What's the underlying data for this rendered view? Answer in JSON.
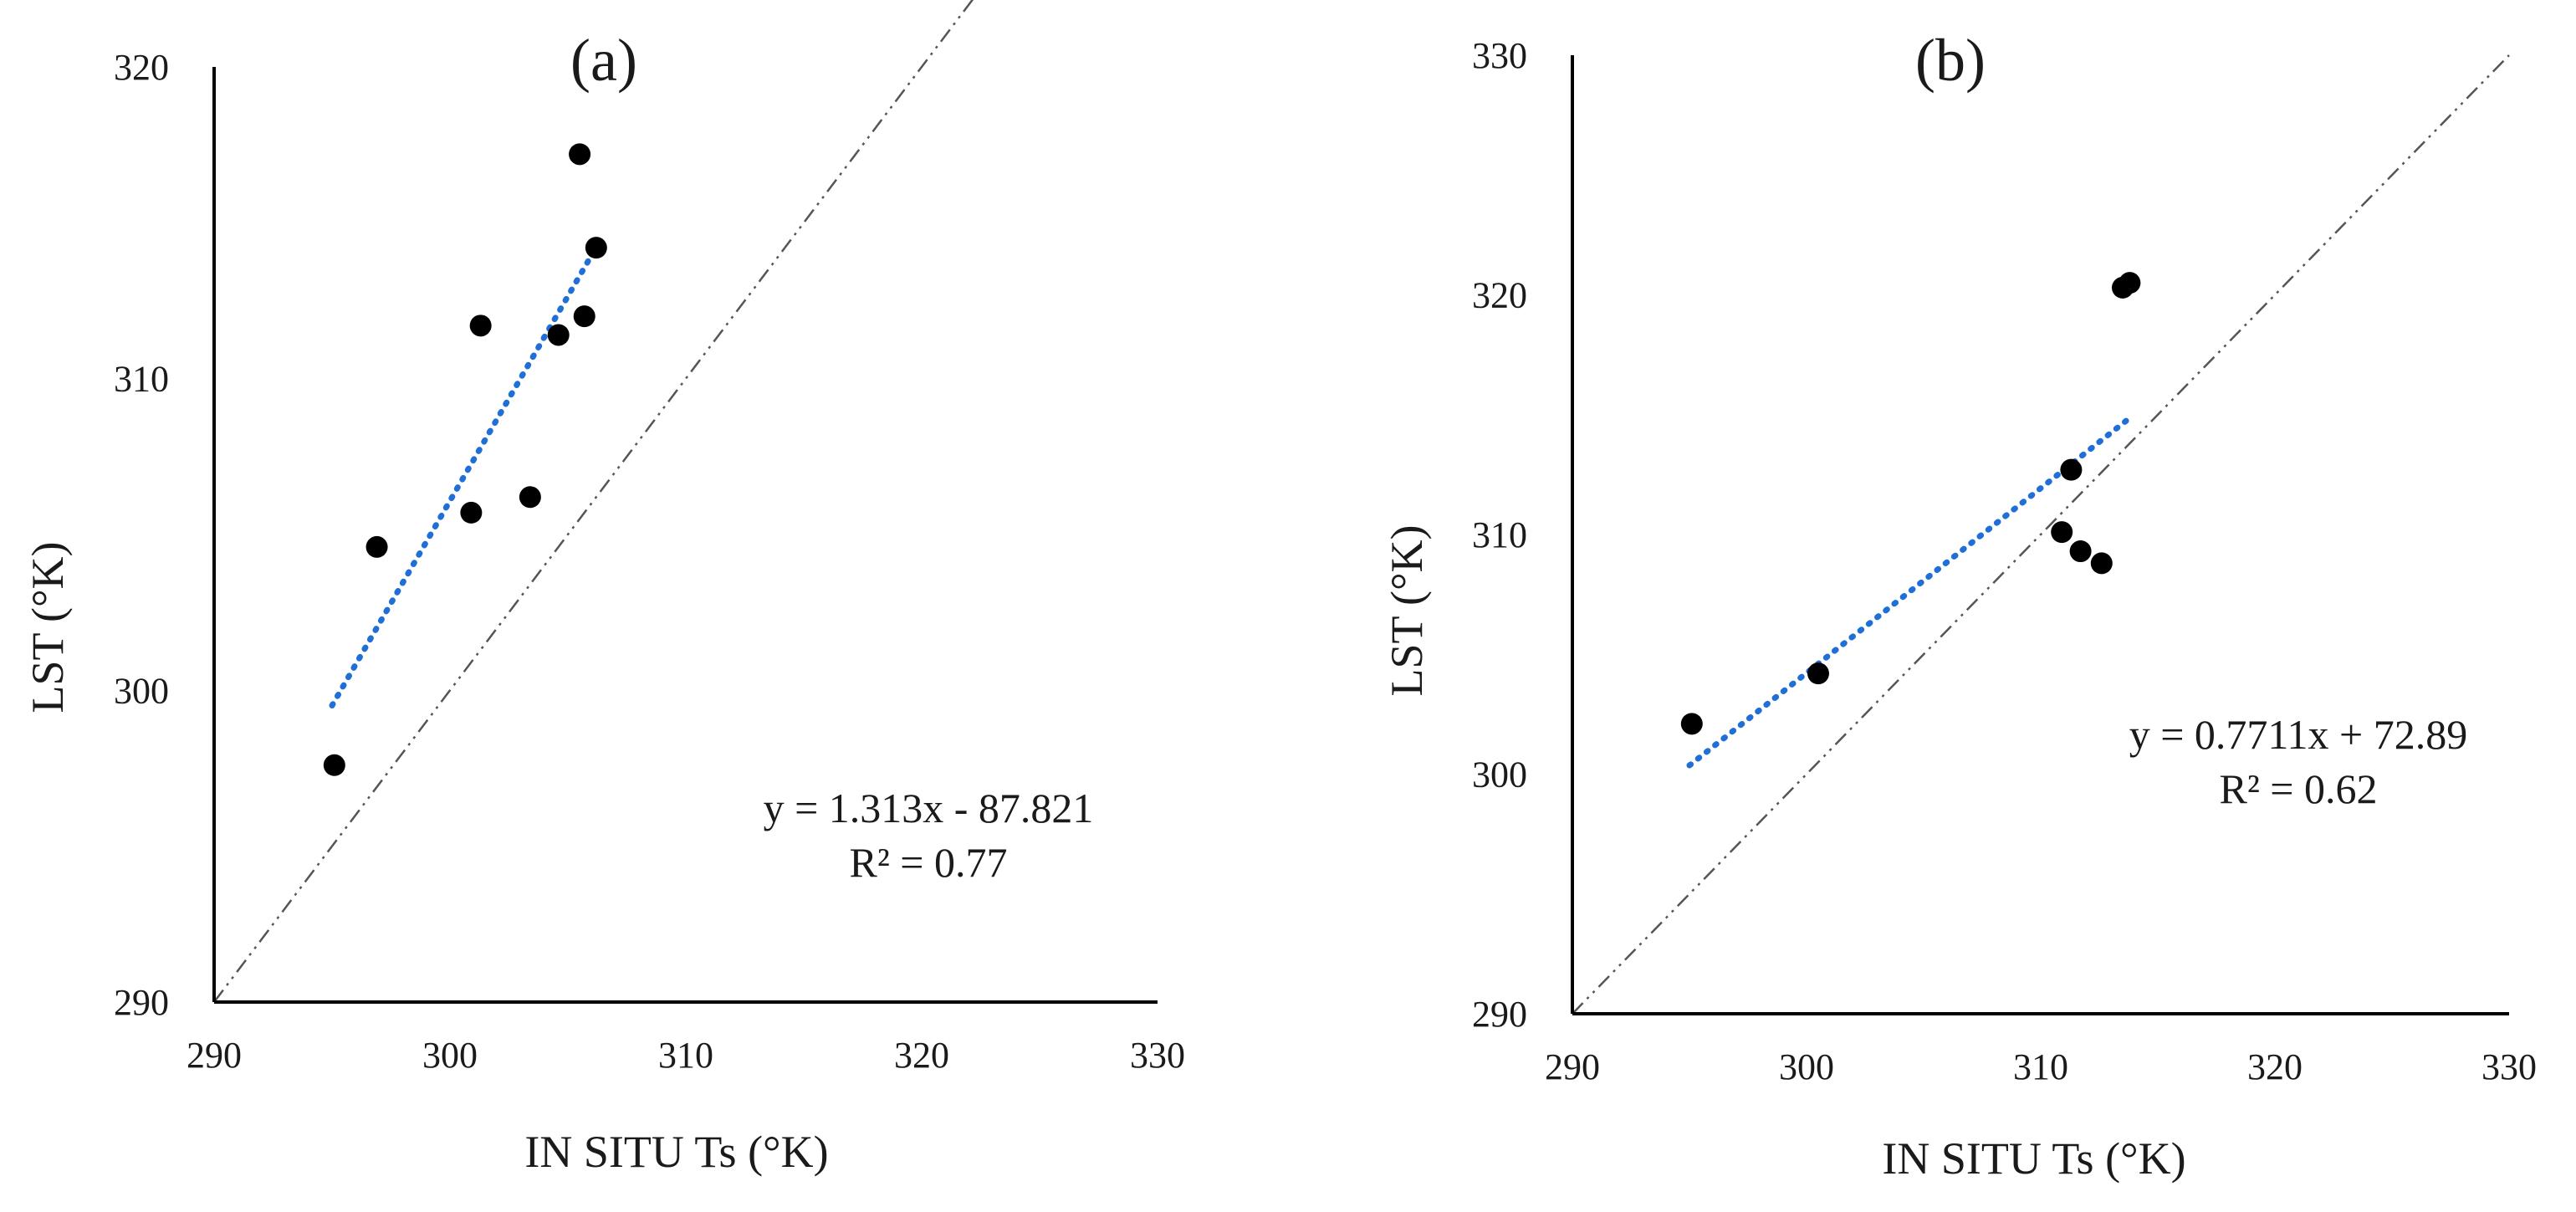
{
  "chart_data": [
    {
      "type": "scatter",
      "panel_label": "(a)",
      "xlabel": "IN SITU  Ts (°K)",
      "ylabel": "LST (°K)",
      "xlim": [
        290,
        330
      ],
      "ylim": [
        290,
        320
      ],
      "xticks": [
        290,
        300,
        310,
        320,
        330
      ],
      "yticks": [
        290,
        300,
        310,
        320
      ],
      "grid": false,
      "legend": "none",
      "points": [
        {
          "x": 295.1,
          "y": 297.6
        },
        {
          "x": 296.9,
          "y": 304.6
        },
        {
          "x": 300.9,
          "y": 305.7
        },
        {
          "x": 301.3,
          "y": 311.7
        },
        {
          "x": 303.4,
          "y": 306.2
        },
        {
          "x": 304.6,
          "y": 311.4
        },
        {
          "x": 305.5,
          "y": 317.2
        },
        {
          "x": 305.7,
          "y": 312.0
        },
        {
          "x": 306.2,
          "y": 314.2
        }
      ],
      "trendline": {
        "slope": 1.313,
        "intercept": -87.821,
        "x_range": [
          295.0,
          306.2
        ],
        "color": "#1f6fd6"
      },
      "identity_line": {
        "x_range": [
          290,
          330
        ],
        "color": "#555555"
      },
      "annotation": {
        "equation": "y = 1.313x  - 87.821",
        "r2": "R² = 0.77"
      },
      "point_color": "#000000"
    },
    {
      "type": "scatter",
      "panel_label": "(b)",
      "xlabel": "IN SITU  Ts (°K)",
      "ylabel": "LST (°K)",
      "xlim": [
        290,
        330
      ],
      "ylim": [
        290,
        330
      ],
      "xticks": [
        290,
        300,
        310,
        320,
        330
      ],
      "yticks": [
        290,
        300,
        310,
        320,
        330
      ],
      "grid": false,
      "legend": "none",
      "points": [
        {
          "x": 295.1,
          "y": 302.1
        },
        {
          "x": 300.5,
          "y": 304.2
        },
        {
          "x": 310.9,
          "y": 310.1
        },
        {
          "x": 311.3,
          "y": 312.7
        },
        {
          "x": 311.7,
          "y": 309.3
        },
        {
          "x": 312.6,
          "y": 308.8
        },
        {
          "x": 313.5,
          "y": 320.3
        },
        {
          "x": 313.8,
          "y": 320.5
        }
      ],
      "trendline": {
        "slope": 0.7711,
        "intercept": 72.89,
        "x_range": [
          295.0,
          313.7
        ],
        "color": "#1f6fd6"
      },
      "identity_line": {
        "x_range": [
          290,
          330
        ],
        "color": "#555555"
      },
      "annotation": {
        "equation": "y = 0.7711x  + 72.89",
        "r2": "R² = 0.62"
      },
      "point_color": "#000000"
    }
  ]
}
